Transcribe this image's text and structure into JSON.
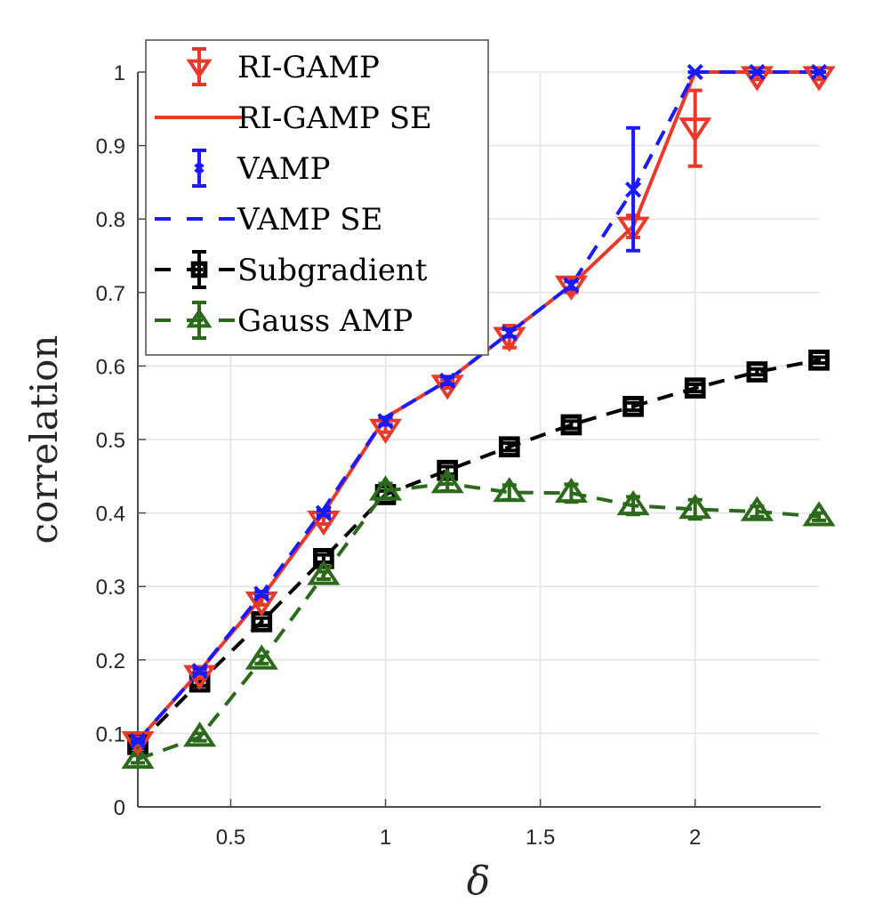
{
  "chart_data": {
    "type": "line",
    "title": "",
    "xlabel": "δ",
    "ylabel": "correlation",
    "xlim": [
      0.2,
      2.4
    ],
    "ylim": [
      0,
      1
    ],
    "grid": true,
    "legend_position": "top-left",
    "x": [
      0.2,
      0.4,
      0.6,
      0.8,
      1.0,
      1.2,
      1.4,
      1.6,
      1.8,
      2.0,
      2.2,
      2.4
    ],
    "xticks": [
      0.5,
      1,
      1.5,
      2
    ],
    "xtick_labels": [
      "0.5",
      "1",
      "1.5",
      "2"
    ],
    "yticks": [
      0,
      0.1,
      0.2,
      0.3,
      0.4,
      0.5,
      0.6,
      0.7,
      0.8,
      0.9,
      1
    ],
    "ytick_labels": [
      "0",
      "0.1",
      "0.2",
      "0.3",
      "0.4",
      "0.5",
      "0.6",
      "0.7",
      "0.8",
      "0.9",
      "1"
    ],
    "series": [
      {
        "name": "RI-GAMP",
        "color": "#e8392b",
        "marker": "triangle-down",
        "line": "none",
        "values": [
          0.09,
          0.18,
          0.28,
          0.39,
          0.515,
          0.575,
          0.64,
          0.71,
          0.79,
          0.925,
          0.995,
          0.995
        ],
        "err_low": [
          0.085,
          0.175,
          0.275,
          0.385,
          0.51,
          0.57,
          0.625,
          0.7,
          0.775,
          0.872,
          0.99,
          0.99
        ],
        "err_high": [
          0.095,
          0.185,
          0.285,
          0.395,
          0.52,
          0.58,
          0.655,
          0.72,
          0.805,
          0.975,
          1.0,
          1.0
        ]
      },
      {
        "name": "RI-GAMP SE",
        "color": "#e8392b",
        "marker": "none",
        "line": "solid",
        "values": [
          0.09,
          0.185,
          0.285,
          0.4,
          0.53,
          0.58,
          0.645,
          0.71,
          0.79,
          1.0,
          1.0,
          1.0
        ]
      },
      {
        "name": "VAMP",
        "color": "#1a1aff",
        "marker": "x",
        "line": "none",
        "values": [
          0.09,
          0.185,
          0.29,
          0.4,
          0.525,
          0.58,
          0.645,
          0.71,
          0.84,
          1.0,
          1.0,
          1.0
        ],
        "err_low": [
          0.088,
          0.182,
          0.287,
          0.397,
          0.52,
          0.575,
          0.64,
          0.705,
          0.757,
          1.0,
          1.0,
          1.0
        ],
        "err_high": [
          0.092,
          0.188,
          0.293,
          0.403,
          0.53,
          0.585,
          0.65,
          0.715,
          0.924,
          1.0,
          1.0,
          1.0
        ]
      },
      {
        "name": "VAMP SE",
        "color": "#1a1aff",
        "marker": "none",
        "line": "dashed",
        "values": [
          0.09,
          0.185,
          0.29,
          0.405,
          0.53,
          0.58,
          0.645,
          0.71,
          0.84,
          1.0,
          1.0,
          1.0
        ]
      },
      {
        "name": "Subgradient",
        "color": "#000000",
        "marker": "square",
        "line": "dashed",
        "values": [
          0.085,
          0.17,
          0.252,
          0.338,
          0.425,
          0.458,
          0.49,
          0.52,
          0.545,
          0.57,
          0.592,
          0.608
        ],
        "err_low": [
          0.08,
          0.165,
          0.247,
          0.333,
          0.42,
          0.453,
          0.485,
          0.515,
          0.54,
          0.565,
          0.588,
          0.604
        ],
        "err_high": [
          0.09,
          0.175,
          0.257,
          0.343,
          0.43,
          0.463,
          0.495,
          0.525,
          0.55,
          0.575,
          0.596,
          0.612
        ]
      },
      {
        "name": "Gauss AMP",
        "color": "#2b6a1a",
        "marker": "triangle-up",
        "line": "dashed",
        "values": [
          0.065,
          0.095,
          0.2,
          0.315,
          0.43,
          0.44,
          0.428,
          0.427,
          0.41,
          0.405,
          0.402,
          0.395
        ],
        "err_low": [
          0.06,
          0.09,
          0.195,
          0.31,
          0.42,
          0.43,
          0.418,
          0.415,
          0.398,
          0.392,
          0.395,
          0.39
        ],
        "err_high": [
          0.07,
          0.1,
          0.205,
          0.32,
          0.44,
          0.45,
          0.438,
          0.439,
          0.422,
          0.418,
          0.409,
          0.4
        ]
      }
    ],
    "legend": [
      {
        "label": "RI-GAMP",
        "series": 0
      },
      {
        "label": "RI-GAMP SE",
        "series": 1
      },
      {
        "label": "VAMP",
        "series": 2
      },
      {
        "label": "VAMP SE",
        "series": 3
      },
      {
        "label": "Subgradient",
        "series": 4
      },
      {
        "label": "Gauss AMP",
        "series": 5
      }
    ]
  }
}
